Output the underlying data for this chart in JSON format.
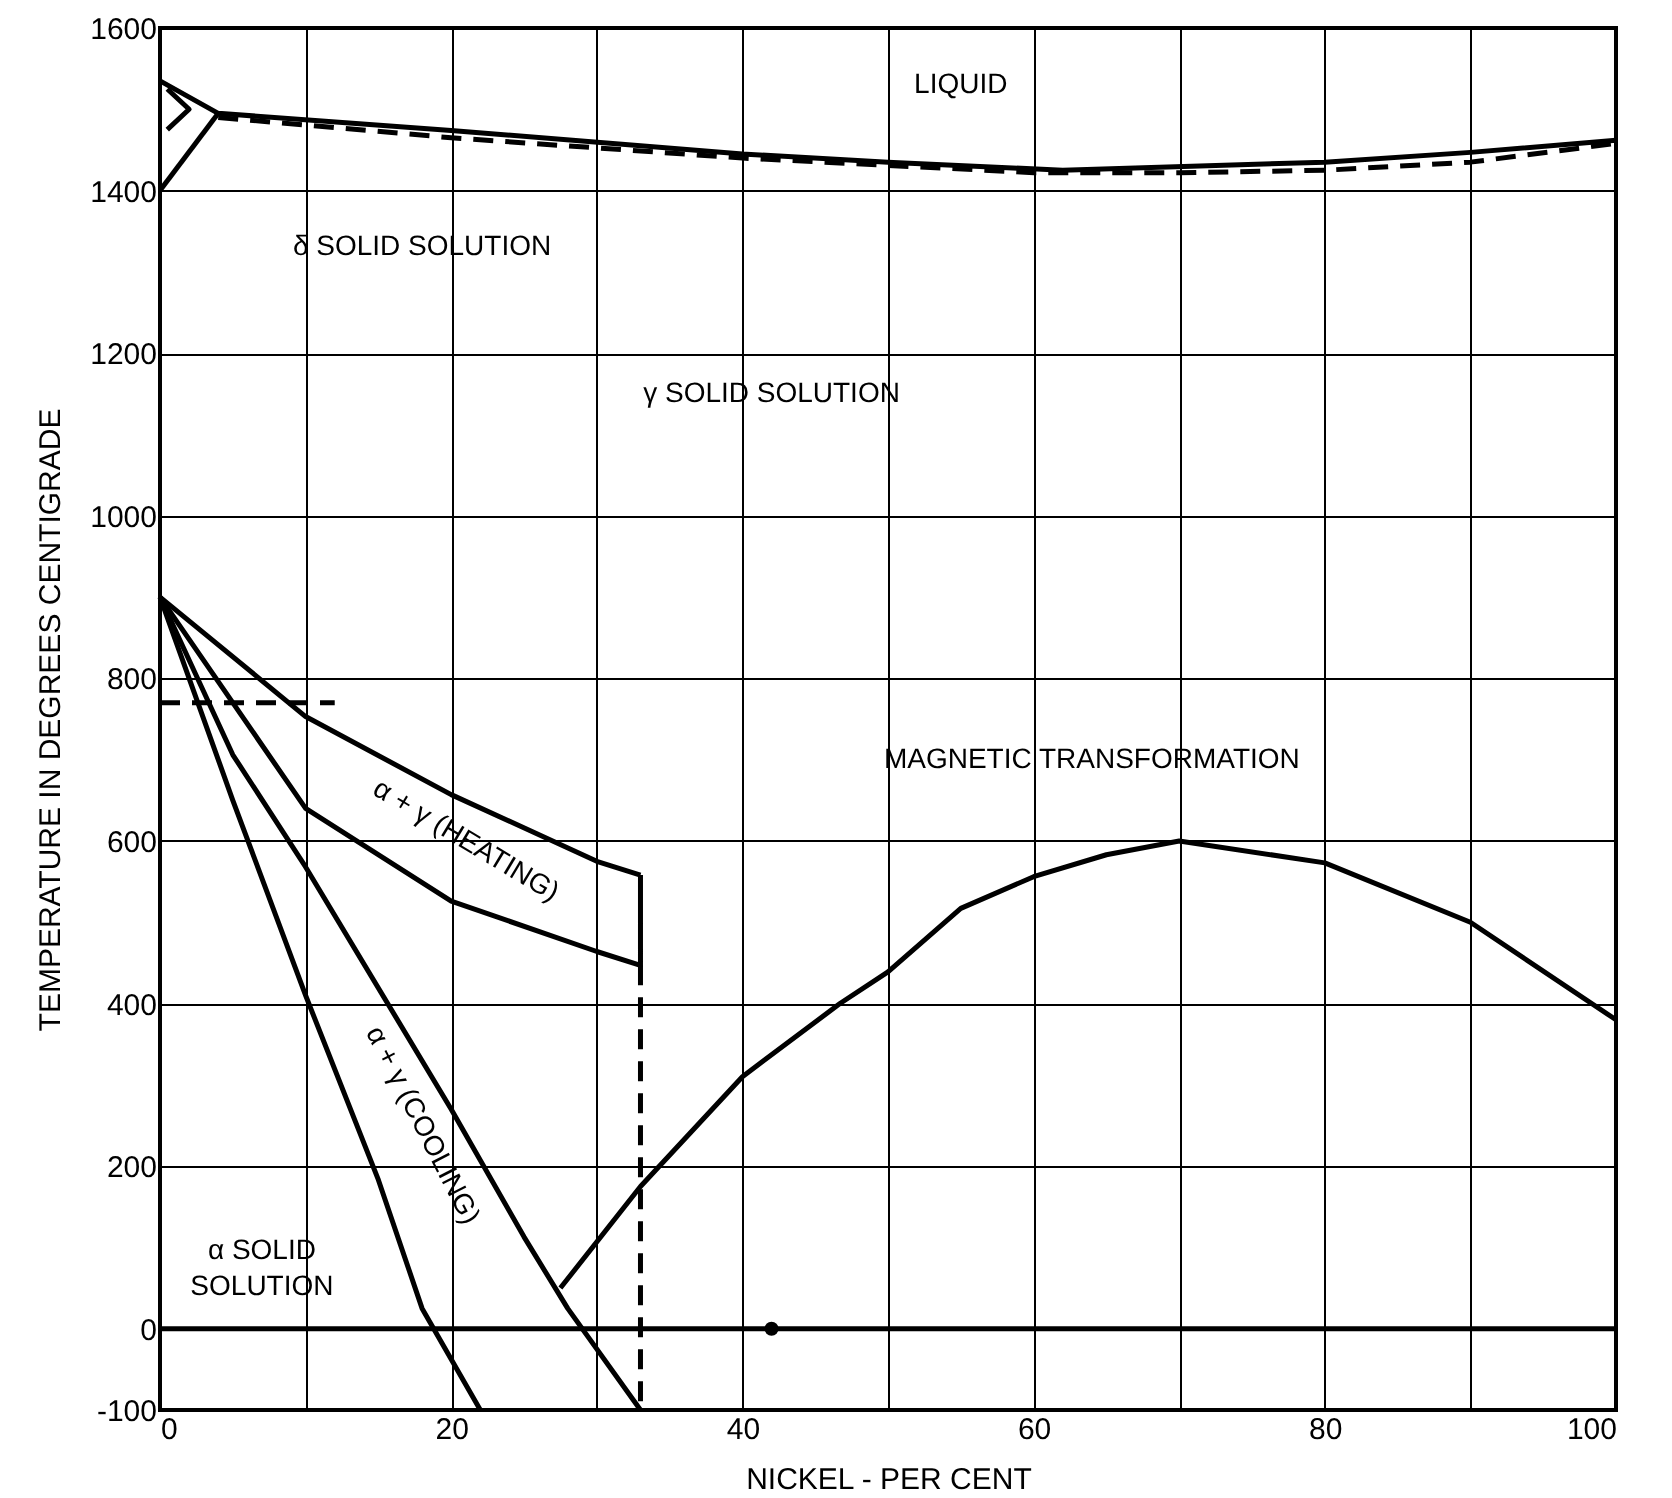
{
  "chart_data": {
    "type": "line",
    "xlabel": "NICKEL - PER CENT",
    "ylabel": "TEMPERATURE IN DEGREES CENTIGRADE",
    "xlim": [
      0,
      100
    ],
    "ylim": [
      -100,
      1600
    ],
    "xticks": [
      0,
      {
        "value": 10,
        "label": null
      },
      20,
      {
        "value": 30,
        "label": null
      },
      40,
      {
        "value": 50,
        "label": null
      },
      60,
      {
        "value": 70,
        "label": null
      },
      80,
      {
        "value": 90,
        "label": null
      },
      100
    ],
    "yticks": [
      -100,
      0,
      200,
      400,
      600,
      800,
      1000,
      1200,
      1400,
      1600
    ],
    "grid": true,
    "marker": "none",
    "series": [
      {
        "color": "#000000",
        "line_style": "solid",
        "x": [
          0,
          4,
          20,
          40,
          50,
          62,
          80,
          90,
          100
        ],
        "values": [
          1535,
          1495,
          1474,
          1445,
          1435,
          1425,
          1435,
          1447,
          1462
        ]
      },
      {
        "color": "#000000",
        "line_style": "dashed",
        "x": [
          4,
          20,
          40,
          60,
          70,
          80,
          90,
          100
        ],
        "values": [
          1490,
          1465,
          1440,
          1422,
          1422,
          1425,
          1435,
          1458
        ]
      },
      {
        "color": "#000000",
        "line_style": "solid",
        "x": [
          0,
          4
        ],
        "values": [
          1400,
          1495
        ]
      },
      {
        "color": "#000000",
        "line_style": "solid",
        "x": [
          0.5,
          2,
          0.5
        ],
        "values": [
          1525,
          1500,
          1475
        ]
      },
      {
        "color": "#000000",
        "line_style": "solid",
        "x": [
          0,
          10,
          20,
          30,
          33
        ],
        "values": [
          900,
          753,
          657,
          575,
          558
        ]
      },
      {
        "color": "#000000",
        "line_style": "solid",
        "x": [
          0,
          10,
          20,
          30,
          33,
          33
        ],
        "values": [
          900,
          640,
          526,
          464,
          447,
          558
        ]
      },
      {
        "color": "#000000",
        "line_style": "solid",
        "x": [
          0,
          5,
          10,
          15,
          18,
          22
        ],
        "values": [
          900,
          650,
          410,
          183,
          25,
          -100
        ]
      },
      {
        "color": "#000000",
        "line_style": "solid",
        "x": [
          0,
          5,
          10,
          20,
          25,
          28,
          33
        ],
        "values": [
          900,
          706,
          568,
          270,
          113,
          25,
          -100
        ]
      },
      {
        "color": "#000000",
        "line_style": "dashed",
        "x": [
          0,
          12
        ],
        "values": [
          770,
          770
        ]
      },
      {
        "color": "#000000",
        "line_style": "dashed",
        "x": [
          33,
          33
        ],
        "values": [
          447,
          -100
        ]
      },
      {
        "color": "#000000",
        "line_style": "solid",
        "x": [
          27.5,
          33,
          40,
          46.7,
          50,
          55,
          60,
          65,
          70,
          80,
          90,
          100
        ],
        "values": [
          50,
          175,
          310,
          400,
          439,
          517,
          556,
          583,
          600,
          573,
          500,
          380
        ]
      },
      {
        "type": "scatter",
        "color": "#000000",
        "marker": "circle",
        "x": [
          42
        ],
        "values": [
          0
        ]
      }
    ],
    "ref_lines": [
      {
        "axis": "y",
        "value": 0,
        "color": "#000000",
        "line_style": "solid"
      }
    ],
    "annotations": [
      "LIQUID",
      "δ SOLID SOLUTION",
      "γ SOLID SOLUTION",
      "MAGNETIC TRANSFORMATION",
      "α SOLID SOLUTION",
      "α + γ (HEATING)",
      "α + γ (COOLING)"
    ]
  }
}
